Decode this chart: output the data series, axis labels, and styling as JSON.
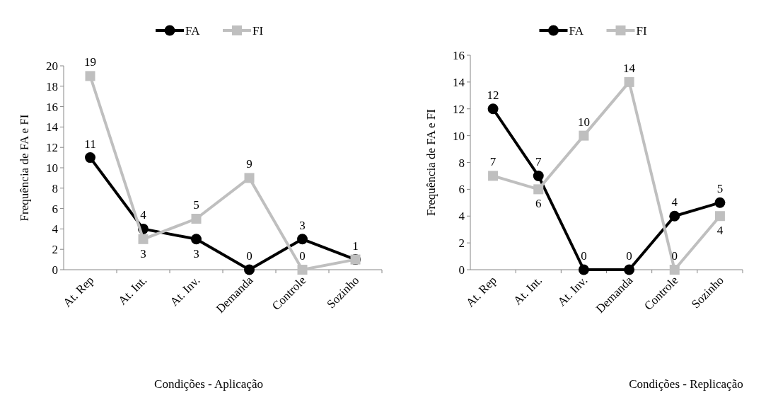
{
  "chart_data": [
    {
      "type": "line",
      "xlabel": "Condições - Aplicação",
      "ylabel": "Frequência de FA e FI",
      "categories": [
        "At. Rep",
        "At. Int.",
        "At. Inv.",
        "Demanda",
        "Controle",
        "Sozinho"
      ],
      "series": [
        {
          "name": "FA",
          "color": "#000000",
          "marker": "circle",
          "values": [
            11,
            4,
            3,
            0,
            3,
            1
          ]
        },
        {
          "name": "FI",
          "color": "#bfbfbf",
          "marker": "square",
          "values": [
            19,
            3,
            5,
            9,
            0,
            1
          ],
          "value_labels": [
            "19",
            "3",
            "5",
            "9",
            "0",
            null
          ]
        }
      ],
      "ylim": [
        0,
        20
      ],
      "yticks": [
        0,
        2,
        4,
        6,
        8,
        10,
        12,
        14,
        16,
        18,
        20
      ],
      "data_labels": true,
      "legend": "top",
      "grid": false
    },
    {
      "type": "line",
      "xlabel": "Condições - Replicação",
      "ylabel": "Frequência de FA e FI",
      "categories": [
        "At. Rep",
        "At. Int.",
        "At. Inv.",
        "Demanda",
        "Controle",
        "Sozinho"
      ],
      "series": [
        {
          "name": "FA",
          "color": "#000000",
          "marker": "circle",
          "values": [
            12,
            7,
            0,
            0,
            4,
            5
          ]
        },
        {
          "name": "FI",
          "color": "#bfbfbf",
          "marker": "square",
          "values": [
            7,
            6,
            10,
            14,
            0,
            4
          ]
        }
      ],
      "ylim": [
        0,
        16
      ],
      "yticks": [
        0,
        2,
        4,
        6,
        8,
        10,
        12,
        14,
        16
      ],
      "data_labels": true,
      "legend": "top",
      "grid": false
    }
  ]
}
